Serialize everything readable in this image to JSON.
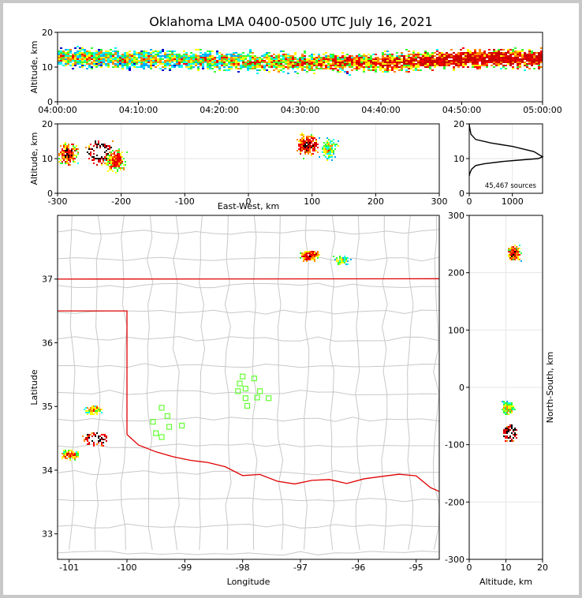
{
  "title": "Oklahoma LMA 0400-0500 UTC July 16, 2021",
  "colors": {
    "state_border": "#e00000",
    "county_lines": "#c8c8c8",
    "stations": "#66ff33"
  },
  "colorscale": [
    "#0000cc",
    "#00aaff",
    "#00ffee",
    "#33ff33",
    "#ffff00",
    "#ff8800",
    "#ff0000",
    "#cc0000",
    "#000000",
    "#ffffff"
  ],
  "chart_data": [
    {
      "id": "time_height",
      "type": "heatmap",
      "title": "Oklahoma LMA 0400-0500 UTC July 16, 2021",
      "ylabel": "Altitude, km",
      "xlabel": "",
      "x_range": [
        "04:00:00",
        "05:00:00"
      ],
      "xticks": [
        "04:00:00",
        "04:10:00",
        "04:20:00",
        "04:30:00",
        "04:40:00",
        "04:50:00",
        "05:00:00"
      ],
      "ylim": [
        0,
        20
      ],
      "yticks": [
        "0",
        "10",
        "20"
      ],
      "density_profile": {
        "time_min": [
          0,
          10,
          20,
          30,
          40,
          50,
          60
        ],
        "center_km": [
          13,
          12.5,
          12,
          11.5,
          11.5,
          12.5,
          12.5
        ],
        "intensity": [
          0.45,
          0.4,
          0.45,
          0.55,
          0.65,
          0.85,
          0.8
        ]
      }
    },
    {
      "id": "ew_height",
      "type": "heatmap",
      "xlabel": "East-West, km",
      "ylabel": "Altitude, km",
      "xlim": [
        -300,
        300
      ],
      "xticks": [
        "-300",
        "-200",
        "-100",
        "0",
        "100",
        "200",
        "300"
      ],
      "ylim": [
        0,
        20
      ],
      "yticks": [
        "0",
        "10",
        "20"
      ],
      "clusters": [
        {
          "ew_km": -285,
          "alt_km": 11.5,
          "intensity": 0.7
        },
        {
          "ew_km": -235,
          "alt_km": 12,
          "intensity": 1.0
        },
        {
          "ew_km": -210,
          "alt_km": 9.5,
          "intensity": 0.6
        },
        {
          "ew_km": 92,
          "alt_km": 14,
          "intensity": 0.75
        },
        {
          "ew_km": 125,
          "alt_km": 13,
          "intensity": 0.4
        }
      ]
    },
    {
      "id": "altitude_histogram",
      "type": "line",
      "xlim": [
        0,
        1700
      ],
      "xticks": [
        "0",
        "1000"
      ],
      "ylim": [
        0,
        20
      ],
      "yticks": [
        "0",
        "10",
        "20"
      ],
      "annotation": "45,467 sources",
      "x": [
        0,
        20,
        60,
        150,
        350,
        800,
        1200,
        1600,
        1700,
        1500,
        1000,
        500,
        150,
        40,
        10,
        0
      ],
      "y": [
        5,
        6,
        7,
        8,
        8.5,
        9.2,
        9.6,
        10,
        10.5,
        12,
        13.5,
        14.5,
        15.5,
        17,
        19,
        20
      ]
    },
    {
      "id": "plan_view",
      "type": "heatmap",
      "xlabel": "Longitude",
      "ylabel": "Latitude",
      "xlim": [
        -101.2,
        -94.6
      ],
      "xticks": [
        "-101",
        "-100",
        "-99",
        "-98",
        "-97",
        "-96",
        "-95"
      ],
      "ylim": [
        32.6,
        38
      ],
      "yticks": [
        "33",
        "34",
        "35",
        "36",
        "37"
      ],
      "clusters": [
        {
          "lon": -101.0,
          "lat": 34.25,
          "intensity": 0.6
        },
        {
          "lon": -100.55,
          "lat": 34.5,
          "intensity": 1.0
        },
        {
          "lon": -100.6,
          "lat": 34.95,
          "intensity": 0.5
        },
        {
          "lon": -96.85,
          "lat": 37.38,
          "intensity": 0.7
        },
        {
          "lon": -96.3,
          "lat": 37.3,
          "intensity": 0.4
        }
      ],
      "stations": [
        {
          "lon": -98.0,
          "lat": 35.47
        },
        {
          "lon": -97.8,
          "lat": 35.44
        },
        {
          "lon": -98.05,
          "lat": 35.36
        },
        {
          "lon": -97.95,
          "lat": 35.28
        },
        {
          "lon": -98.08,
          "lat": 35.24
        },
        {
          "lon": -97.7,
          "lat": 35.24
        },
        {
          "lon": -97.75,
          "lat": 35.14
        },
        {
          "lon": -97.55,
          "lat": 35.13
        },
        {
          "lon": -97.95,
          "lat": 35.13
        },
        {
          "lon": -97.92,
          "lat": 35.01
        },
        {
          "lon": -99.4,
          "lat": 34.98
        },
        {
          "lon": -99.3,
          "lat": 34.85
        },
        {
          "lon": -99.55,
          "lat": 34.76
        },
        {
          "lon": -99.27,
          "lat": 34.68
        },
        {
          "lon": -99.05,
          "lat": 34.7
        },
        {
          "lon": -99.5,
          "lat": 34.58
        },
        {
          "lon": -99.4,
          "lat": 34.52
        }
      ]
    },
    {
      "id": "ns_height",
      "type": "heatmap",
      "xlabel": "Altitude, km",
      "ylabel": "North-South, km",
      "xlim": [
        0,
        20
      ],
      "xticks": [
        "0",
        "10",
        "20"
      ],
      "ylim": [
        -300,
        300
      ],
      "yticks": [
        "-300",
        "-200",
        "-100",
        "0",
        "100",
        "200",
        "300"
      ],
      "clusters": [
        {
          "alt_km": 12,
          "ns_km": 235,
          "intensity": 0.7
        },
        {
          "alt_km": 11,
          "ns_km": -80,
          "intensity": 1.0
        },
        {
          "alt_km": 10.5,
          "ns_km": -35,
          "intensity": 0.5
        }
      ]
    }
  ]
}
